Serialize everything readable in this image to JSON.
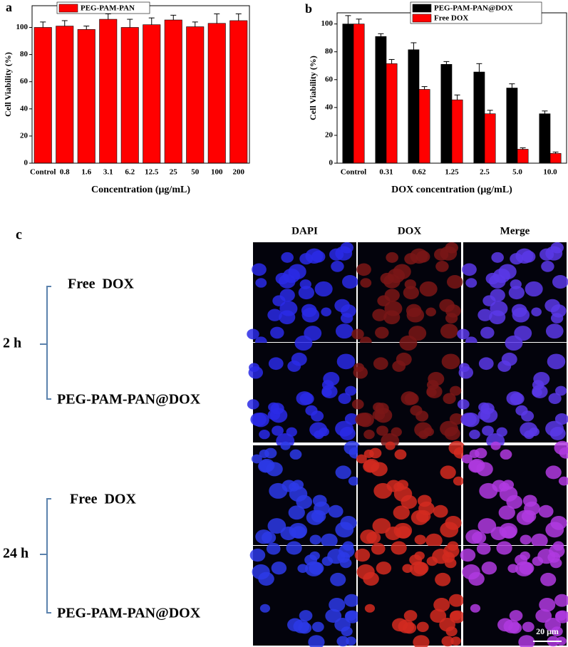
{
  "chart_data": [
    {
      "type": "bar",
      "panel": "a",
      "x_label": "Concentration (μg/mL)",
      "y_label": "Cell Viability (%)",
      "categories": [
        "Control",
        "0.8",
        "1.6",
        "3.1",
        "6.2",
        "12.5",
        "25",
        "50",
        "100",
        "200"
      ],
      "series": [
        {
          "name": "PEG-PAM-PAN",
          "color": "#ff0000",
          "values": [
            100,
            101,
            98.5,
            106,
            100,
            102,
            105.5,
            100.5,
            103,
            105
          ],
          "errors": [
            4,
            4,
            2.5,
            4,
            6,
            5,
            3.5,
            3.5,
            7,
            5
          ]
        }
      ],
      "ylim": [
        0,
        116
      ],
      "yticks": [
        0,
        20,
        40,
        60,
        80,
        100
      ],
      "legend": "top"
    },
    {
      "type": "bar",
      "panel": "b",
      "x_label": "DOX concentration (μg/mL)",
      "y_label": "Cell Viability (%)",
      "categories": [
        "Control",
        "0.31",
        "0.62",
        "1.25",
        "2.5",
        "5.0",
        "10.0"
      ],
      "series": [
        {
          "name": "PEG-PAM-PAN@DOX",
          "color": "#000000",
          "values": [
            100,
            91,
            81.5,
            71,
            65.5,
            54,
            35.5
          ],
          "errors": [
            6,
            2,
            5,
            2,
            6,
            3,
            2
          ]
        },
        {
          "name": "Free DOX",
          "color": "#ff0000",
          "values": [
            100,
            71.5,
            53,
            45.5,
            35.5,
            10,
            7
          ],
          "errors": [
            3.5,
            3,
            2,
            3.5,
            2.5,
            1,
            1
          ]
        }
      ],
      "ylim": [
        0,
        108
      ],
      "yticks": [
        0,
        20,
        40,
        60,
        80,
        100
      ],
      "legend": "top"
    }
  ],
  "panel_c": {
    "label": "c",
    "columns": [
      "DAPI",
      "DOX",
      "Merge"
    ],
    "groups": [
      {
        "time": "2 h",
        "rows": [
          "Free  DOX",
          "PEG-PAM-PAN@DOX"
        ]
      },
      {
        "time": "24 h",
        "rows": [
          "Free  DOX",
          "PEG-PAM-PAN@DOX"
        ]
      }
    ],
    "scale_bar": "20 μm"
  }
}
